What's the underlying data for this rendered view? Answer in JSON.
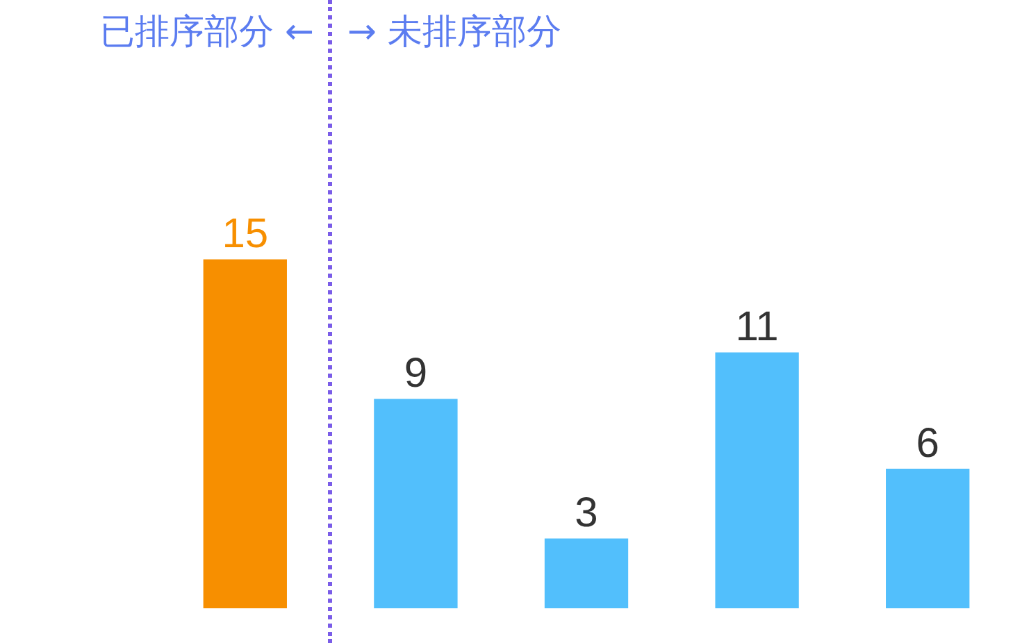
{
  "chart_data": {
    "type": "bar",
    "categories": [
      null,
      null,
      null,
      null,
      null
    ],
    "values": [
      15,
      9,
      3,
      11,
      6
    ],
    "colors": [
      "#f78f00",
      "#52bffc",
      "#52bffc",
      "#52bffc",
      "#52bffc"
    ],
    "data_labels": true,
    "annotations": [
      "已排序部分 ←",
      "→ 未排序部分"
    ]
  }
}
